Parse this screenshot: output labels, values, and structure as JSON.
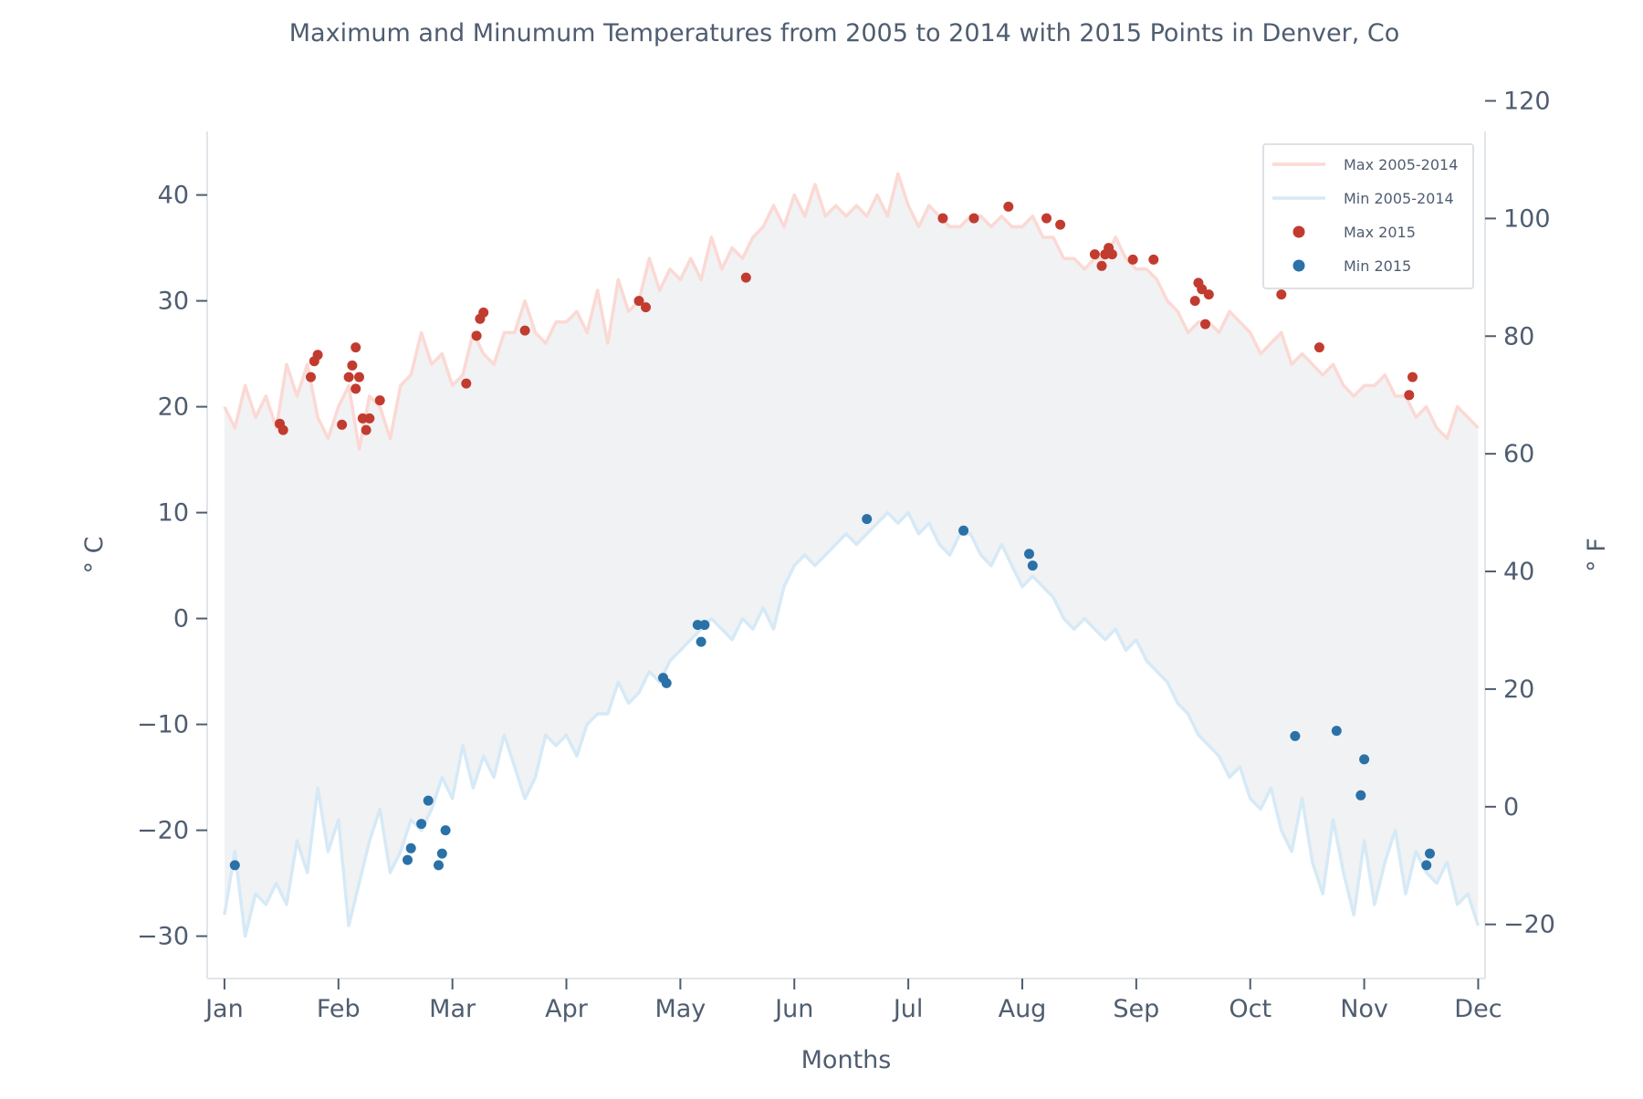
{
  "chart_data": {
    "type": "line",
    "title": "Maximum and Minumum Temperatures from 2005 to 2014 with 2015 Points in Denver, Co",
    "xlabel": "Months",
    "ylabel": "° C",
    "ylabel_right": "° F",
    "x_unit": "day of year",
    "xlim": [
      -5,
      365
    ],
    "ylim": [
      -34,
      46
    ],
    "ylim_right": [
      -29.2,
      114.8
    ],
    "x_ticks": [
      {
        "label": "Jan",
        "day": 0
      },
      {
        "label": "Feb",
        "day": 33
      },
      {
        "label": "Mar",
        "day": 66
      },
      {
        "label": "Apr",
        "day": 99
      },
      {
        "label": "May",
        "day": 132
      },
      {
        "label": "Jun",
        "day": 165
      },
      {
        "label": "Jul",
        "day": 198
      },
      {
        "label": "Aug",
        "day": 231
      },
      {
        "label": "Sep",
        "day": 264
      },
      {
        "label": "Oct",
        "day": 297
      },
      {
        "label": "Nov",
        "day": 330
      },
      {
        "label": "Dec",
        "day": 363
      }
    ],
    "y_ticks": [
      -30,
      -20,
      -10,
      0,
      10,
      20,
      30,
      40
    ],
    "y_ticks_right": [
      -20,
      0,
      20,
      40,
      60,
      80,
      100,
      120
    ],
    "grid": false,
    "legend_position": "top-right",
    "fill_between": {
      "between": [
        "Max 2005-2014",
        "Min 2005-2014"
      ],
      "color": "#f1f2f4"
    },
    "series": [
      {
        "name": "Max 2005-2014",
        "kind": "line",
        "color": "#fbd9d4",
        "x": [
          0,
          3,
          6,
          9,
          12,
          15,
          18,
          21,
          24,
          27,
          30,
          33,
          36,
          39,
          42,
          45,
          48,
          51,
          54,
          57,
          60,
          63,
          66,
          69,
          72,
          75,
          78,
          81,
          84,
          87,
          90,
          93,
          96,
          99,
          102,
          105,
          108,
          111,
          114,
          117,
          120,
          123,
          126,
          129,
          132,
          135,
          138,
          141,
          144,
          147,
          150,
          153,
          156,
          159,
          162,
          165,
          168,
          171,
          174,
          177,
          180,
          183,
          186,
          189,
          192,
          195,
          198,
          201,
          204,
          207,
          210,
          213,
          216,
          219,
          222,
          225,
          228,
          231,
          234,
          237,
          240,
          243,
          246,
          249,
          252,
          255,
          258,
          261,
          264,
          267,
          270,
          273,
          276,
          279,
          282,
          285,
          288,
          291,
          294,
          297,
          300,
          303,
          306,
          309,
          312,
          315,
          318,
          321,
          324,
          327,
          330,
          333,
          336,
          339,
          342,
          345,
          348,
          351,
          354,
          357,
          360,
          363
        ],
        "values": [
          20,
          18,
          22,
          19,
          21,
          18,
          24,
          21,
          24,
          19,
          17,
          20,
          22,
          16,
          21,
          20,
          17,
          22,
          23,
          27,
          24,
          25,
          22,
          23,
          27,
          25,
          24,
          27,
          27,
          30,
          27,
          26,
          28,
          28,
          29,
          27,
          31,
          26,
          32,
          29,
          30,
          34,
          31,
          33,
          32,
          34,
          32,
          36,
          33,
          35,
          34,
          36,
          37,
          39,
          37,
          40,
          38,
          41,
          38,
          39,
          38,
          39,
          38,
          40,
          38,
          42,
          39,
          37,
          39,
          38,
          37,
          37,
          38,
          38,
          37,
          38,
          37,
          37,
          38,
          36,
          36,
          34,
          34,
          33,
          34,
          34,
          36,
          34,
          33,
          33,
          32,
          30,
          29,
          27,
          28,
          28,
          27,
          29,
          28,
          27,
          25,
          26,
          27,
          24,
          25,
          24,
          23,
          24,
          22,
          21,
          22,
          22,
          23,
          21,
          21,
          19,
          20,
          18,
          17,
          20,
          19,
          18
        ]
      },
      {
        "name": "Min 2005-2014",
        "kind": "line",
        "color": "#d6e9f6",
        "x": [
          0,
          3,
          6,
          9,
          12,
          15,
          18,
          21,
          24,
          27,
          30,
          33,
          36,
          39,
          42,
          45,
          48,
          51,
          54,
          57,
          60,
          63,
          66,
          69,
          72,
          75,
          78,
          81,
          84,
          87,
          90,
          93,
          96,
          99,
          102,
          105,
          108,
          111,
          114,
          117,
          120,
          123,
          126,
          129,
          132,
          135,
          138,
          141,
          144,
          147,
          150,
          153,
          156,
          159,
          162,
          165,
          168,
          171,
          174,
          177,
          180,
          183,
          186,
          189,
          192,
          195,
          198,
          201,
          204,
          207,
          210,
          213,
          216,
          219,
          222,
          225,
          228,
          231,
          234,
          237,
          240,
          243,
          246,
          249,
          252,
          255,
          258,
          261,
          264,
          267,
          270,
          273,
          276,
          279,
          282,
          285,
          288,
          291,
          294,
          297,
          300,
          303,
          306,
          309,
          312,
          315,
          318,
          321,
          324,
          327,
          330,
          333,
          336,
          339,
          342,
          345,
          348,
          351,
          354,
          357,
          360,
          363
        ],
        "values": [
          -28,
          -22,
          -30,
          -26,
          -27,
          -25,
          -27,
          -21,
          -24,
          -16,
          -22,
          -19,
          -29,
          -25,
          -21,
          -18,
          -24,
          -22,
          -19,
          -20,
          -18,
          -15,
          -17,
          -12,
          -16,
          -13,
          -15,
          -11,
          -14,
          -17,
          -15,
          -11,
          -12,
          -11,
          -13,
          -10,
          -9,
          -9,
          -6,
          -8,
          -7,
          -5,
          -6,
          -4,
          -3,
          -2,
          -1,
          0,
          -1,
          -2,
          0,
          -1,
          1,
          -1,
          3,
          5,
          6,
          5,
          6,
          7,
          8,
          7,
          8,
          9,
          10,
          9,
          10,
          8,
          9,
          7,
          6,
          8,
          8,
          6,
          5,
          7,
          5,
          3,
          4,
          3,
          2,
          0,
          -1,
          0,
          -1,
          -2,
          -1,
          -3,
          -2,
          -4,
          -5,
          -6,
          -8,
          -9,
          -11,
          -12,
          -13,
          -15,
          -14,
          -17,
          -18,
          -16,
          -20,
          -22,
          -17,
          -23,
          -26,
          -19,
          -24,
          -28,
          -21,
          -27,
          -23,
          -20,
          -26,
          -22,
          -24,
          -25,
          -23,
          -27,
          -26,
          -29
        ]
      },
      {
        "name": "Max 2015",
        "kind": "scatter",
        "color": "#c23b2f",
        "x": [
          16,
          17,
          25,
          26,
          27,
          34,
          36,
          37,
          38,
          38,
          39,
          40,
          41,
          42,
          45,
          70,
          73,
          74,
          75,
          87,
          120,
          122,
          151,
          208,
          217,
          227,
          238,
          242,
          252,
          254,
          255,
          256,
          257,
          263,
          269,
          281,
          282,
          283,
          284,
          285,
          306,
          317,
          343,
          344
        ],
        "values": [
          18.4,
          17.8,
          22.8,
          24.3,
          24.9,
          18.3,
          22.8,
          23.9,
          25.6,
          21.7,
          22.8,
          18.9,
          17.8,
          18.9,
          20.6,
          22.2,
          26.7,
          28.3,
          28.9,
          27.2,
          30.0,
          29.4,
          32.2,
          37.8,
          37.8,
          38.9,
          37.8,
          37.2,
          34.4,
          33.3,
          34.4,
          35.0,
          34.4,
          33.9,
          33.9,
          30.0,
          31.7,
          31.1,
          27.8,
          30.6,
          30.6,
          25.6,
          21.1,
          22.8
        ]
      },
      {
        "name": "Min 2015",
        "kind": "scatter",
        "color": "#2a71a8",
        "x": [
          3,
          53,
          54,
          57,
          59,
          62,
          63,
          64,
          127,
          128,
          137,
          138,
          139,
          186,
          214,
          233,
          234,
          310,
          322,
          329,
          330,
          348,
          349
        ],
        "values": [
          -23.3,
          -22.8,
          -21.7,
          -19.4,
          -17.2,
          -23.3,
          -22.2,
          -20.0,
          -5.6,
          -6.1,
          -0.6,
          -2.2,
          -0.6,
          9.4,
          8.3,
          6.1,
          5.0,
          -11.1,
          -10.6,
          -16.7,
          -13.3,
          -23.3,
          -22.2
        ]
      }
    ]
  }
}
